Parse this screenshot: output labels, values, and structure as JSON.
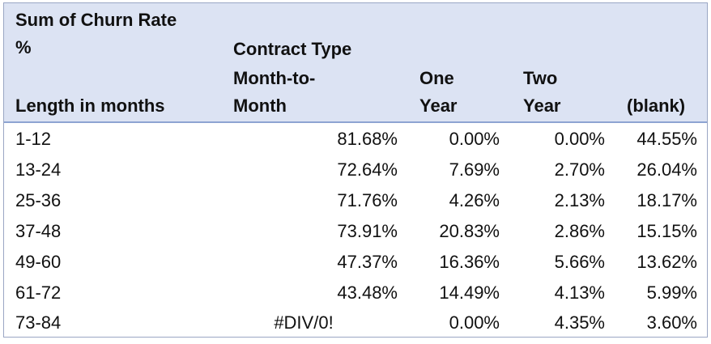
{
  "header": {
    "value_field_line1": "Sum of Churn Rate",
    "value_field_line2": "%",
    "column_field": "Contract Type",
    "row_field": "Length in months",
    "columns": [
      {
        "line1": "Month-to-",
        "line2": "Month"
      },
      {
        "line1": "One",
        "line2": "Year"
      },
      {
        "line1": "Two",
        "line2": "Year"
      },
      {
        "line1": "",
        "line2": "(blank)"
      }
    ]
  },
  "rows": [
    {
      "label": "1-12",
      "values": [
        "81.68%",
        "0.00%",
        "0.00%",
        "44.55%"
      ]
    },
    {
      "label": "13-24",
      "values": [
        "72.64%",
        "7.69%",
        "2.70%",
        "26.04%"
      ]
    },
    {
      "label": "25-36",
      "values": [
        "71.76%",
        "4.26%",
        "2.13%",
        "18.17%"
      ]
    },
    {
      "label": "37-48",
      "values": [
        "73.91%",
        "20.83%",
        "2.86%",
        "15.15%"
      ]
    },
    {
      "label": "49-60",
      "values": [
        "47.37%",
        "16.36%",
        "5.66%",
        "13.62%"
      ]
    },
    {
      "label": "61-72",
      "values": [
        "43.48%",
        "14.49%",
        "4.13%",
        "5.99%"
      ]
    },
    {
      "label": "73-84",
      "values": [
        "#DIV/0!",
        "0.00%",
        "4.35%",
        "3.60%"
      ]
    }
  ],
  "colors": {
    "header_fill": "#dce3f3",
    "header_rule": "#8ea4d2",
    "border": "#9aa6c4"
  }
}
